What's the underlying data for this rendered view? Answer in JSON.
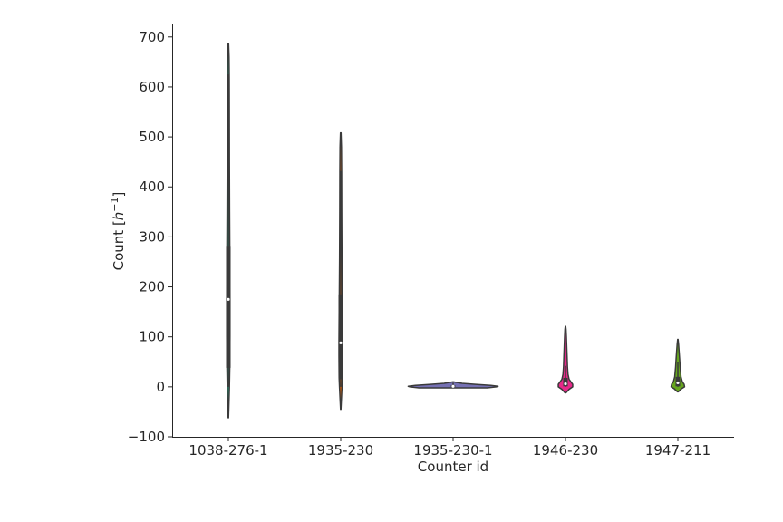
{
  "chart_data": {
    "type": "violin",
    "xlabel": "Counter id",
    "ylabel": "Count [",
    "ylabel_unit": "h",
    "ylabel_exp": "−1",
    "ylabel_close": "]",
    "ylim": [
      -100,
      725
    ],
    "yticks": [
      -100,
      0,
      100,
      200,
      300,
      400,
      500,
      600,
      700
    ],
    "ytick_labels": [
      "−100",
      "0",
      "100",
      "200",
      "300",
      "400",
      "500",
      "600",
      "700"
    ],
    "categories": [
      "1038-276-1",
      "1935-230",
      "1935-230-1",
      "1946-230",
      "1947-211"
    ],
    "violins": [
      {
        "category": "1038-276-1",
        "color": "#1b9e77",
        "profile": [
          [
            -62,
            0.2
          ],
          [
            0,
            1.2
          ],
          [
            40,
            1.6
          ],
          [
            100,
            1.8
          ],
          [
            175,
            1.8
          ],
          [
            250,
            1.7
          ],
          [
            280,
            1.6
          ],
          [
            350,
            1.4
          ],
          [
            450,
            1.2
          ],
          [
            550,
            1.1
          ],
          [
            620,
            1.0
          ],
          [
            660,
            0.8
          ],
          [
            686,
            0.3
          ]
        ],
        "q1": 38,
        "q3": 282,
        "median": 175,
        "whisker_low": 0,
        "whisker_high": 625
      },
      {
        "category": "1935-230",
        "color": "#d95f02",
        "profile": [
          [
            -45,
            0.2
          ],
          [
            0,
            1.4
          ],
          [
            18,
            1.8
          ],
          [
            60,
            2.0
          ],
          [
            90,
            2.0
          ],
          [
            140,
            1.8
          ],
          [
            185,
            1.6
          ],
          [
            260,
            1.3
          ],
          [
            350,
            1.1
          ],
          [
            430,
            1.0
          ],
          [
            480,
            0.8
          ],
          [
            508,
            0.3
          ]
        ],
        "q1": 15,
        "q3": 185,
        "median": 88,
        "whisker_low": 0,
        "whisker_high": 432
      },
      {
        "category": "1935-230-1",
        "color": "#7570b3",
        "profile": [
          [
            -2,
            38
          ],
          [
            0,
            48
          ],
          [
            1,
            50
          ],
          [
            3,
            42
          ],
          [
            5,
            25
          ],
          [
            7,
            10
          ],
          [
            9,
            3
          ],
          [
            10,
            0.5
          ]
        ],
        "q1": 0,
        "q3": 3,
        "median": 1,
        "whisker_low": 0,
        "whisker_high": 8
      },
      {
        "category": "1946-230",
        "color": "#e7298a",
        "profile": [
          [
            -12,
            0.5
          ],
          [
            -5,
            4
          ],
          [
            0,
            8
          ],
          [
            5,
            8
          ],
          [
            10,
            6
          ],
          [
            15,
            4
          ],
          [
            25,
            2.8
          ],
          [
            40,
            2.2
          ],
          [
            60,
            1.8
          ],
          [
            80,
            1.4
          ],
          [
            100,
            1.0
          ],
          [
            115,
            0.6
          ],
          [
            121,
            0.2
          ]
        ],
        "q1": 1,
        "q3": 18,
        "median": 6,
        "whisker_low": 0,
        "whisker_high": 42
      },
      {
        "category": "1947-211",
        "color": "#66a61e",
        "profile": [
          [
            -10,
            0.5
          ],
          [
            -4,
            4
          ],
          [
            0,
            7.5
          ],
          [
            5,
            7
          ],
          [
            10,
            5
          ],
          [
            20,
            3.5
          ],
          [
            30,
            3
          ],
          [
            40,
            2.5
          ],
          [
            55,
            2
          ],
          [
            70,
            1.4
          ],
          [
            85,
            0.8
          ],
          [
            95,
            0.2
          ]
        ],
        "q1": 1,
        "q3": 20,
        "median": 8,
        "whisker_low": 0,
        "whisker_high": 50
      }
    ],
    "grid": false,
    "legend": "none"
  }
}
